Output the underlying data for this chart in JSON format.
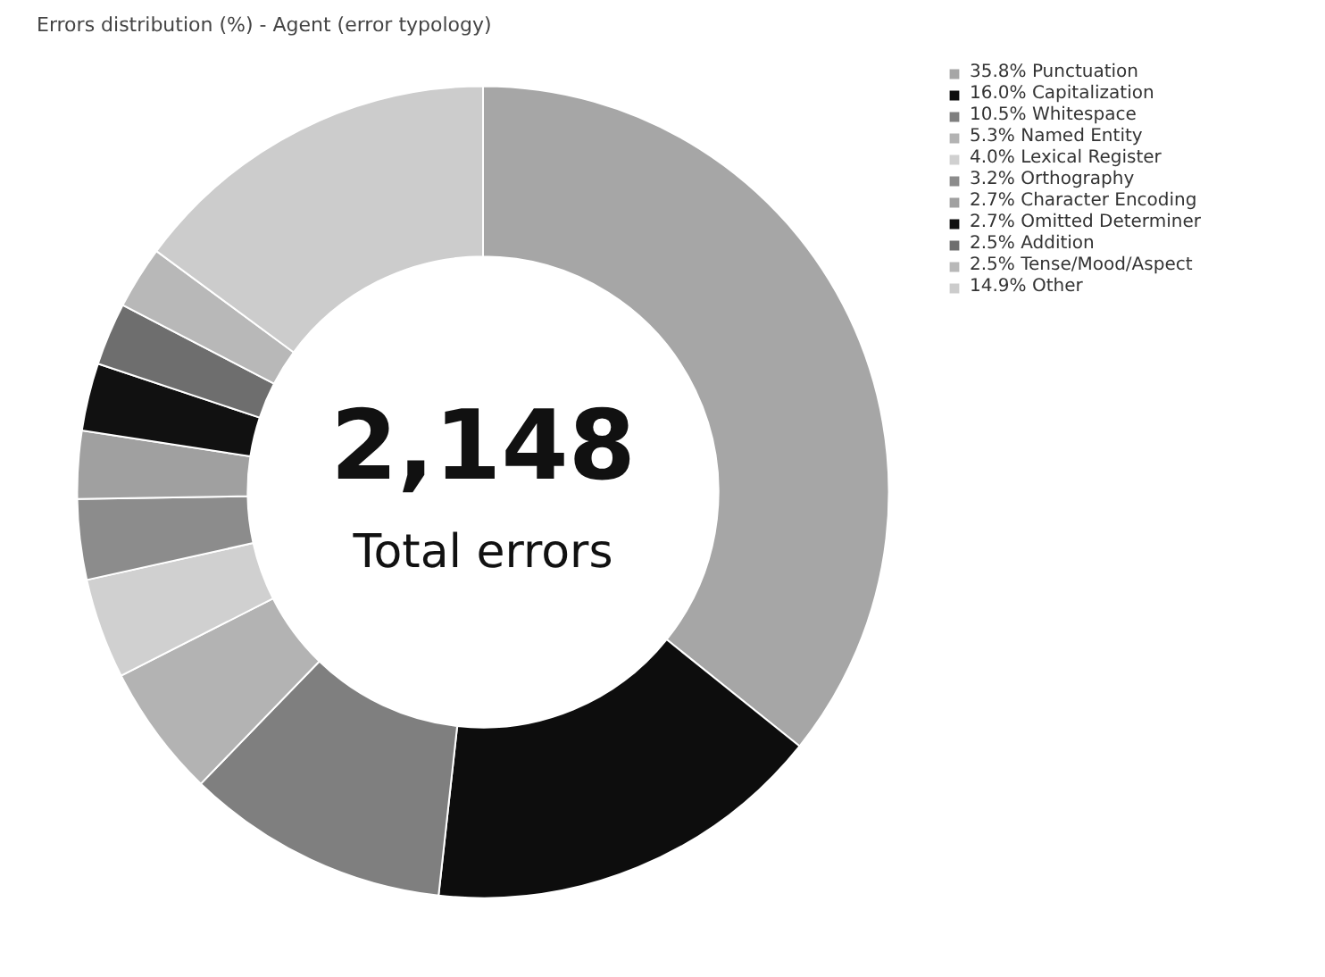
{
  "chart_data": {
    "type": "donut",
    "title": "Errors distribution (%) - Agent (error typology)",
    "categories": [
      "35.8% Punctuation",
      "16.0% Capitalization",
      "10.5% Whitespace",
      "5.3% Named Entity",
      "4.0% Lexical Register",
      "3.2% Orthography",
      "2.7% Character Encoding",
      "2.7% Omitted Determiner",
      "2.5% Addition",
      "2.5% Tense/Mood/Aspect",
      "14.9% Other"
    ],
    "values": [
      35.8,
      16.0,
      10.5,
      5.3,
      4.0,
      3.2,
      2.7,
      2.7,
      2.5,
      2.5,
      14.9
    ],
    "colors": [
      "#a6a6a6",
      "#0d0d0d",
      "#7f7f7f",
      "#b3b3b3",
      "#d0d0d0",
      "#8c8c8c",
      "#a0a0a0",
      "#111111",
      "#6e6e6e",
      "#b8b8b8",
      "#cccccc"
    ],
    "annotations": [
      "2,148",
      "Total errors"
    ],
    "legend": "right"
  }
}
